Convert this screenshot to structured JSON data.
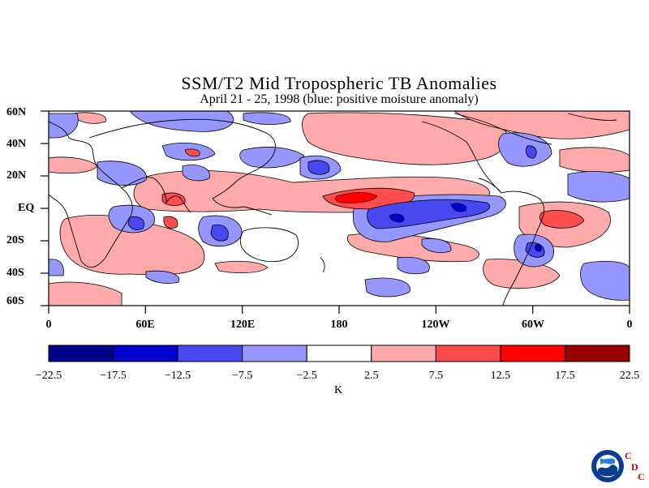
{
  "title": "SSM/T2 Mid Tropospheric TB Anomalies",
  "subtitle": "April 21 - 25, 1998 (blue: positive moisture anomaly)",
  "lat_labels": [
    "60N",
    "40N",
    "20N",
    "EQ",
    "20S",
    "40S",
    "60S"
  ],
  "lon_labels": [
    "0",
    "60E",
    "120E",
    "180",
    "120W",
    "60W",
    "0"
  ],
  "colorbar": {
    "units": "K",
    "tick_labels": [
      "−22.5",
      "−17.5",
      "−12.5",
      "−7.5",
      "−2.5",
      "2.5",
      "7.5",
      "12.5",
      "17.5",
      "22.5"
    ],
    "colors": [
      "#00008b",
      "#0000cd",
      "#4848f0",
      "#9696ff",
      "#ffffff",
      "#ffaaaa",
      "#ff4c4c",
      "#ff0000",
      "#990000"
    ]
  },
  "logo": {
    "name": "noaa-logo",
    "letters": [
      "C",
      "D",
      "C"
    ]
  },
  "map": {
    "projection": "cylindrical equidistant",
    "lat_range": [
      -60,
      60
    ],
    "lon_range": [
      0,
      360
    ],
    "field": "mid-tropospheric brightness temperature anomaly",
    "features": [
      "coastlines",
      "shaded anomaly contours"
    ]
  }
}
